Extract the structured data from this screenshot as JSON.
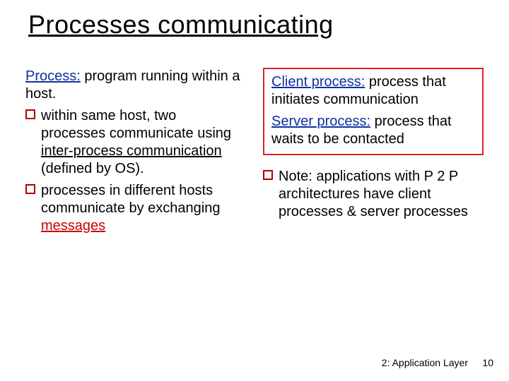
{
  "colors": {
    "text": "#000000",
    "accent_blue": "#1030a0",
    "accent_red": "#cc0000",
    "box_border": "#e02020",
    "bullet_border": "#b00000",
    "underline": "#000000"
  },
  "title": "Processes communicating",
  "left": {
    "p1_label": "Process:",
    "p1_rest": " program running within a host.",
    "b1_pre": "within same host, two processes communicate using  ",
    "b1_u": "inter-process communication",
    "b1_post": " (defined by OS).",
    "b2_pre": "processes in different hosts communicate by exchanging ",
    "b2_red": "messages"
  },
  "right": {
    "box_l1_label": "Client process:",
    "box_l1_rest": " process that initiates communication",
    "box_l2_label": "Server process:",
    "box_l2_rest": " process that waits to be contacted",
    "note_pre": "Note: applications with P 2 P architectures have client processes & server processes"
  },
  "footer": "2: Application Layer",
  "page": "10"
}
